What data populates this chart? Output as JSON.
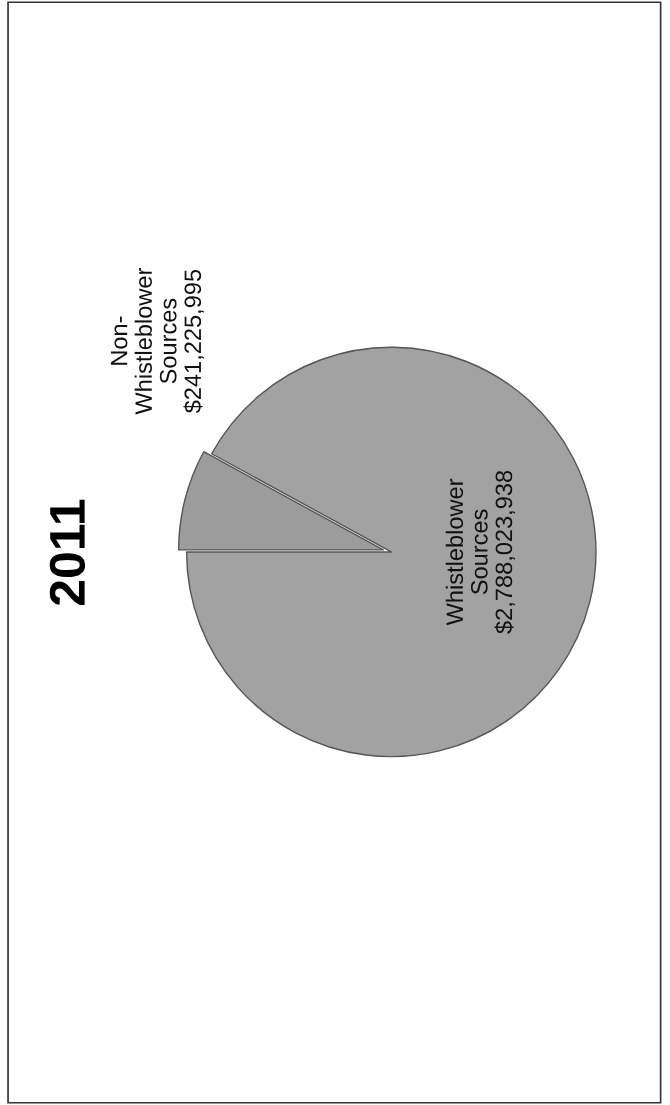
{
  "chart_data": {
    "type": "pie",
    "title": "2011",
    "categories": [
      "Non-\nWhistleblower\nSources",
      "Whistleblower\nSources"
    ],
    "values": [
      241225995,
      2788023938
    ],
    "value_labels": [
      "$241,225,995",
      "$2,788,023,938"
    ],
    "colors": [
      "#9c9c9c",
      "#a2a2a2"
    ],
    "legend": false
  }
}
